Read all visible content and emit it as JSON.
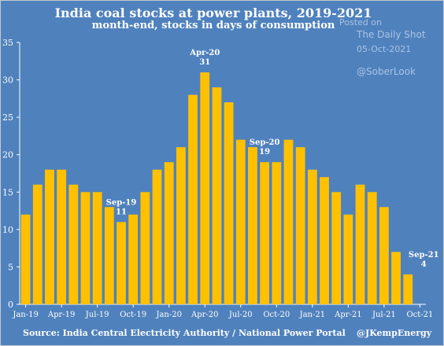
{
  "chart_data": {
    "type": "bar",
    "title": "India coal stocks at power plants, 2019-2021",
    "subtitle": "month-end, stocks in days of consumption",
    "categories": [
      "Jan-19",
      "Feb-19",
      "Mar-19",
      "Apr-19",
      "May-19",
      "Jun-19",
      "Jul-19",
      "Aug-19",
      "Sep-19",
      "Oct-19",
      "Nov-19",
      "Dec-19",
      "Jan-20",
      "Feb-20",
      "Mar-20",
      "Apr-20",
      "May-20",
      "Jun-20",
      "Jul-20",
      "Aug-20",
      "Sep-20",
      "Oct-20",
      "Nov-20",
      "Dec-20",
      "Jan-21",
      "Feb-21",
      "Mar-21",
      "Apr-21",
      "May-21",
      "Jun-21",
      "Jul-21",
      "Aug-21",
      "Sep-21",
      "Oct-21"
    ],
    "values": [
      12,
      16,
      18,
      18,
      16,
      15,
      15,
      13,
      11,
      12,
      15,
      18,
      19,
      21,
      28,
      31,
      29,
      27,
      22,
      21,
      19,
      19,
      22,
      21,
      18,
      17,
      15,
      12,
      16,
      15,
      13,
      7,
      4,
      null
    ],
    "xtick_labels": [
      "Jan-19",
      "Apr-19",
      "Jul-19",
      "Oct-19",
      "Jan-20",
      "Apr-20",
      "Jul-20",
      "Oct-20",
      "Jan-21",
      "Apr-21",
      "Jul-21",
      "Oct-21"
    ],
    "ylim": [
      0,
      35
    ],
    "yticks": [
      0,
      5,
      10,
      15,
      20,
      25,
      30,
      35
    ],
    "grid": false,
    "bar_color": "#ffc000",
    "background_color": "#4f81bd",
    "annotations": [
      {
        "label": "Sep-19",
        "value": "11",
        "category": "Sep-19"
      },
      {
        "label": "Apr-20",
        "value": "31",
        "category": "Apr-20"
      },
      {
        "label": "Sep-20",
        "value": "19",
        "category": "Sep-20"
      },
      {
        "label": "Sep-21",
        "value": "4",
        "category": "Sep-21"
      }
    ]
  },
  "watermark": {
    "line1": "Posted on",
    "line2": "The Daily Shot",
    "date": "05-Oct-2021",
    "handle": "@SoberLook"
  },
  "footer": {
    "source": "Source: India Central Electricity Authority / National Power Portal",
    "credit": "@JKempEnergy"
  }
}
